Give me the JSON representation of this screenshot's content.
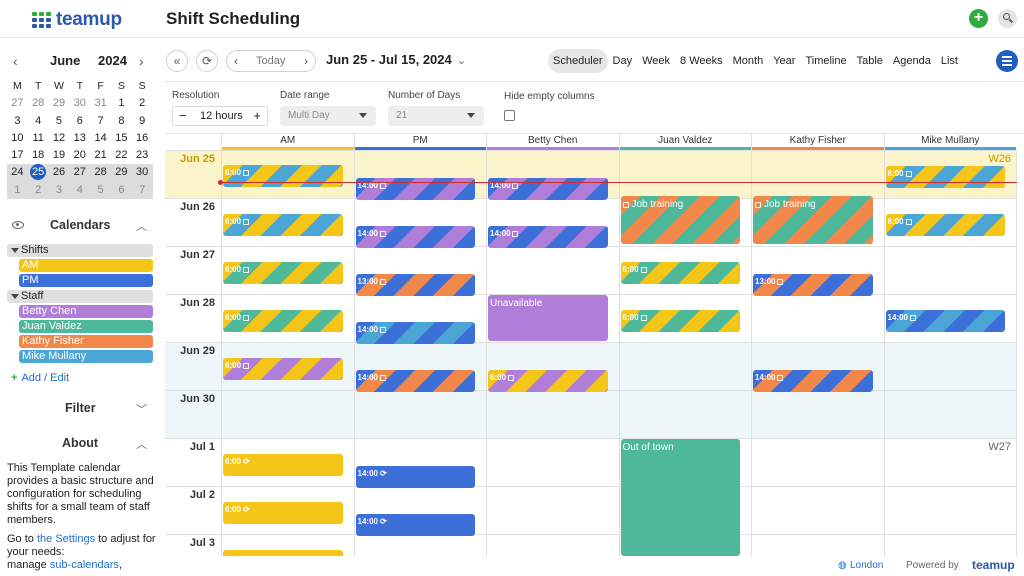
{
  "app": {
    "logo": "teamup",
    "title": "Shift Scheduling"
  },
  "sidebar": {
    "month": "June",
    "year": "2024",
    "dow": [
      "M",
      "T",
      "W",
      "T",
      "F",
      "S",
      "S"
    ],
    "weeks": [
      [
        "27",
        "28",
        "29",
        "30",
        "31",
        "1",
        "2"
      ],
      [
        "3",
        "4",
        "5",
        "6",
        "7",
        "8",
        "9"
      ],
      [
        "10",
        "11",
        "12",
        "13",
        "14",
        "15",
        "16"
      ],
      [
        "17",
        "18",
        "19",
        "20",
        "21",
        "22",
        "23"
      ],
      [
        "24",
        "25",
        "26",
        "27",
        "28",
        "29",
        "30"
      ],
      [
        "1",
        "2",
        "3",
        "4",
        "5",
        "6",
        "7"
      ]
    ],
    "calendars_title": "Calendars",
    "groups": [
      {
        "label": "Shifts",
        "items": [
          {
            "label": "AM",
            "color": "#f5c518"
          },
          {
            "label": "PM",
            "color": "#3d6fd8"
          }
        ]
      },
      {
        "label": "Staff",
        "items": [
          {
            "label": "Betty Chen",
            "color": "#b07ed9"
          },
          {
            "label": "Juan Valdez",
            "color": "#4db89a"
          },
          {
            "label": "Kathy Fisher",
            "color": "#f2874a"
          },
          {
            "label": "Mike Mullany",
            "color": "#4ba6d6"
          }
        ]
      }
    ],
    "add_edit": "Add / Edit",
    "filter_title": "Filter",
    "about_title": "About",
    "about_text": "This Template calendar provides a basic structure and configuration for scheduling shifts for a small team of staff members.",
    "about_goto_pre": "Go to ",
    "about_goto_link": "the Settings",
    "about_goto_post": " to adjust for your needs:",
    "about_manage_pre": "manage ",
    "about_manage_link": "sub-calendars",
    "about_manage_post": ","
  },
  "toolbar": {
    "today": "Today",
    "range": "Jun 25 - Jul 15, 2024",
    "views": [
      "Scheduler",
      "Day",
      "Week",
      "8 Weeks",
      "Month",
      "Year",
      "Timeline",
      "Table",
      "Agenda",
      "List"
    ],
    "active_view": "Scheduler"
  },
  "options": {
    "resolution_label": "Resolution",
    "resolution_value": "12 hours",
    "date_range_label": "Date range",
    "date_range_value": "Multi Day",
    "num_days_label": "Number of Days",
    "num_days_value": "21",
    "hide_empty_label": "Hide empty columns"
  },
  "columns": [
    {
      "label": "AM",
      "color": "#f5c518"
    },
    {
      "label": "PM",
      "color": "#3d6fd8"
    },
    {
      "label": "Betty Chen",
      "color": "#b07ed9"
    },
    {
      "label": "Juan Valdez",
      "color": "#4db89a"
    },
    {
      "label": "Kathy Fisher",
      "color": "#f2874a"
    },
    {
      "label": "Mike Mullany",
      "color": "#4ba6d6"
    }
  ],
  "rows": [
    {
      "label": "Jun 25",
      "week": "W26"
    },
    {
      "label": "Jun 26"
    },
    {
      "label": "Jun 27"
    },
    {
      "label": "Jun 28"
    },
    {
      "label": "Jun 29"
    },
    {
      "label": "Jun 30"
    },
    {
      "label": "Jul 1",
      "week": "W27"
    },
    {
      "label": "Jul 2"
    },
    {
      "label": "Jul 3"
    }
  ],
  "events": [
    {
      "col": 0,
      "row": 0,
      "text": "6:00",
      "colors": [
        "#f5c518",
        "#4ba6d6"
      ],
      "icon": "note"
    },
    {
      "col": 0,
      "row": 1,
      "text": "6:00",
      "colors": [
        "#f5c518",
        "#4ba6d6"
      ],
      "icon": "note"
    },
    {
      "col": 0,
      "row": 2,
      "text": "6:00",
      "colors": [
        "#f5c518",
        "#4db89a"
      ],
      "icon": "note"
    },
    {
      "col": 0,
      "row": 3,
      "text": "6:00",
      "colors": [
        "#f5c518",
        "#4db89a"
      ],
      "icon": "note"
    },
    {
      "col": 0,
      "row": 4,
      "text": "6:00",
      "colors": [
        "#f5c518",
        "#b07ed9"
      ],
      "icon": "note"
    },
    {
      "col": 0,
      "row": 6,
      "text": "6:00",
      "colors": [
        "#f5c518"
      ],
      "icon": "repeat"
    },
    {
      "col": 0,
      "row": 7,
      "text": "6:00",
      "colors": [
        "#f5c518"
      ],
      "icon": "repeat"
    },
    {
      "col": 0,
      "row": 8,
      "text": "",
      "colors": [
        "#f5c518"
      ],
      "icon": ""
    },
    {
      "col": 1,
      "row": 0,
      "text": "14:00",
      "colors": [
        "#3d6fd8",
        "#b07ed9"
      ],
      "icon": "note"
    },
    {
      "col": 1,
      "row": 1,
      "text": "14:00",
      "colors": [
        "#3d6fd8",
        "#b07ed9"
      ],
      "icon": "note"
    },
    {
      "col": 1,
      "row": 2,
      "text": "13:00",
      "colors": [
        "#3d6fd8",
        "#f2874a"
      ],
      "icon": "note"
    },
    {
      "col": 1,
      "row": 3,
      "text": "14:00",
      "colors": [
        "#3d6fd8",
        "#4ba6d6"
      ],
      "icon": "note"
    },
    {
      "col": 1,
      "row": 4,
      "text": "14:00",
      "colors": [
        "#3d6fd8",
        "#f2874a"
      ],
      "icon": "note"
    },
    {
      "col": 1,
      "row": 6,
      "text": "14:00",
      "colors": [
        "#3d6fd8"
      ],
      "icon": "repeat"
    },
    {
      "col": 1,
      "row": 7,
      "text": "14:00",
      "colors": [
        "#3d6fd8"
      ],
      "icon": "repeat"
    },
    {
      "col": 2,
      "row": 0,
      "text": "14:00",
      "colors": [
        "#3d6fd8",
        "#b07ed9"
      ],
      "icon": "note"
    },
    {
      "col": 2,
      "row": 1,
      "text": "14:00",
      "colors": [
        "#3d6fd8",
        "#b07ed9"
      ],
      "icon": "note"
    },
    {
      "col": 2,
      "row": 3,
      "text": "Unavailable",
      "colors": [
        "#b07ed9"
      ],
      "icon": "",
      "tall": 1
    },
    {
      "col": 2,
      "row": 4,
      "text": "6:00",
      "colors": [
        "#f5c518",
        "#b07ed9"
      ],
      "icon": "note"
    },
    {
      "col": 3,
      "row": 1,
      "text": "Job training",
      "colors": [
        "#f2874a",
        "#4db89a"
      ],
      "icon": "note-pre",
      "tall": 1
    },
    {
      "col": 3,
      "row": 2,
      "text": "6:00",
      "colors": [
        "#f5c518",
        "#4db89a"
      ],
      "icon": "note"
    },
    {
      "col": 3,
      "row": 3,
      "text": "6:00",
      "colors": [
        "#f5c518",
        "#4db89a"
      ],
      "icon": "note"
    },
    {
      "col": 3,
      "row": 6,
      "text": "Out of town",
      "colors": [
        "#4db89a"
      ],
      "icon": "",
      "tall": 3
    },
    {
      "col": 4,
      "row": 1,
      "text": "Job training",
      "colors": [
        "#f2874a",
        "#4db89a"
      ],
      "icon": "note-pre",
      "tall": 1
    },
    {
      "col": 4,
      "row": 2,
      "text": "13:00",
      "colors": [
        "#3d6fd8",
        "#f2874a"
      ],
      "icon": "note"
    },
    {
      "col": 4,
      "row": 4,
      "text": "14:00",
      "colors": [
        "#3d6fd8",
        "#f2874a"
      ],
      "icon": "note"
    },
    {
      "col": 5,
      "row": 0,
      "text": "6:00",
      "colors": [
        "#f5c518",
        "#4ba6d6"
      ],
      "icon": "note"
    },
    {
      "col": 5,
      "row": 1,
      "text": "6:00",
      "colors": [
        "#f5c518",
        "#4ba6d6"
      ],
      "icon": "note"
    },
    {
      "col": 5,
      "row": 3,
      "text": "14:00",
      "colors": [
        "#3d6fd8",
        "#4ba6d6"
      ],
      "icon": "note"
    }
  ],
  "footer": {
    "location": "London",
    "powered_by": "Powered by",
    "brand": "teamup"
  }
}
